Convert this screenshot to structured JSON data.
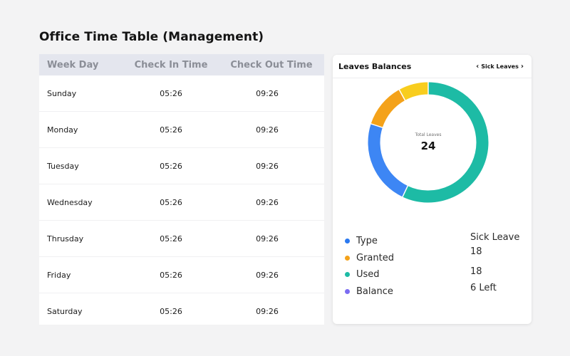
{
  "page": {
    "title": "Office Time Table (Management)"
  },
  "timetable": {
    "headers": {
      "day": "Week Day",
      "in": "Check In Time",
      "out": "Check Out Time"
    },
    "rows": [
      {
        "day": "Sunday",
        "in": "05:26",
        "out": "09:26"
      },
      {
        "day": "Monday",
        "in": "05:26",
        "out": "09:26"
      },
      {
        "day": "Tuesday",
        "in": "05:26",
        "out": "09:26"
      },
      {
        "day": "Wednesday",
        "in": "05:26",
        "out": "09:26"
      },
      {
        "day": "Thrusday",
        "in": "05:26",
        "out": "09:26"
      },
      {
        "day": "Friday",
        "in": "05:26",
        "out": "09:26"
      },
      {
        "day": "Saturday",
        "in": "05:26",
        "out": "09:26"
      }
    ]
  },
  "leaves": {
    "title": "Leaves Balances",
    "selector": {
      "label": "Sick Leaves",
      "prev_icon": "chevron-left-icon",
      "next_icon": "chevron-right-icon"
    },
    "center_label": "Total Leaves",
    "center_value": "24",
    "chart_data": {
      "type": "pie",
      "segments": [
        {
          "value": 0.57,
          "color": "#1dbba5"
        },
        {
          "value": 0.23,
          "color": "#3d86f4"
        },
        {
          "value": 0.12,
          "color": "#f4a21a"
        },
        {
          "value": 0.08,
          "color": "#f8cd1e"
        }
      ]
    },
    "legend": [
      {
        "label": "Type",
        "color": "#2a79f0"
      },
      {
        "label": "Granted",
        "color": "#f4a21a"
      },
      {
        "label": "Used",
        "color": "#1dbba5"
      },
      {
        "label": "Balance",
        "color": "#7b6cf2"
      }
    ],
    "values": {
      "type": "Sick Leave",
      "granted": "18",
      "used": "18",
      "balance": "6 Left"
    }
  }
}
